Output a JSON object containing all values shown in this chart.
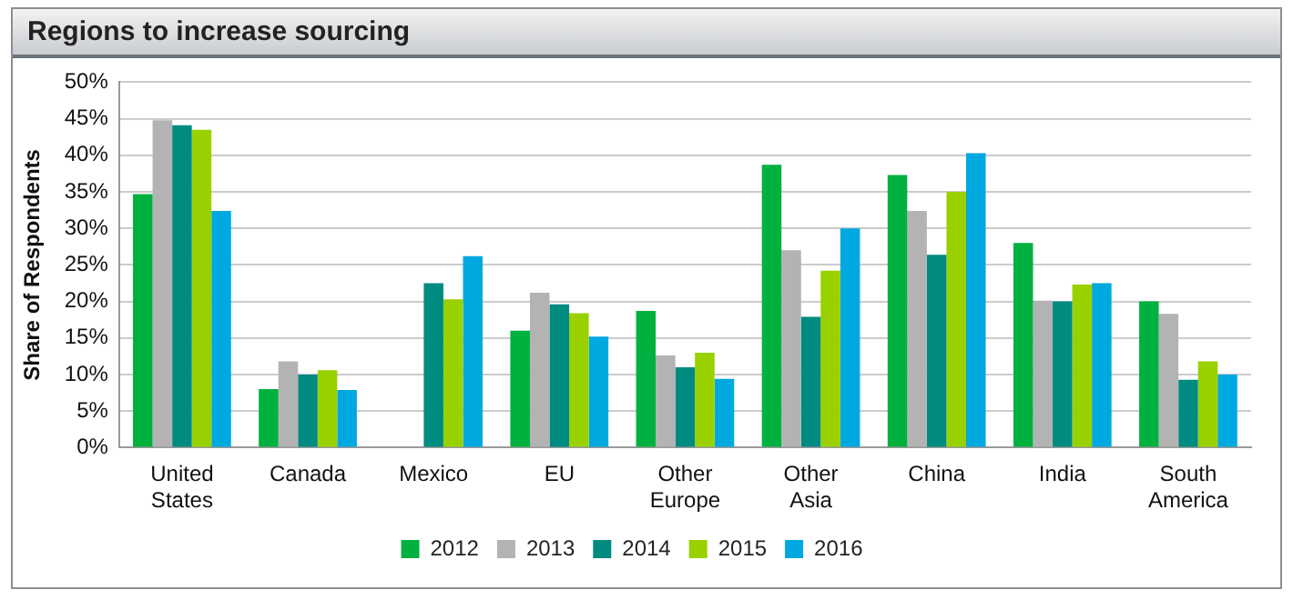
{
  "chart_data": {
    "type": "bar",
    "title": "Regions to increase sourcing",
    "ylabel": "Share of Respondents",
    "categories": [
      "United States",
      "Canada",
      "Mexico",
      "EU",
      "Other Europe",
      "Other Asia",
      "China",
      "India",
      "South America"
    ],
    "series": [
      {
        "name": "2012",
        "color": "#00b140",
        "values": [
          34.7,
          8,
          null,
          16,
          18.7,
          38.7,
          37.3,
          28,
          20
        ]
      },
      {
        "name": "2013",
        "color": "#b3b3b3",
        "values": [
          44.8,
          11.8,
          null,
          21.2,
          12.6,
          27,
          32.4,
          20.1,
          18.3
        ]
      },
      {
        "name": "2014",
        "color": "#008b80",
        "values": [
          44.1,
          10,
          22.5,
          19.6,
          11,
          17.9,
          26.4,
          20,
          9.3
        ]
      },
      {
        "name": "2015",
        "color": "#99d100",
        "values": [
          43.5,
          10.6,
          20.3,
          18.4,
          13,
          24.2,
          35,
          22.3,
          11.8
        ]
      },
      {
        "name": "2016",
        "color": "#00a8e0",
        "values": [
          32.4,
          7.9,
          26.2,
          15.2,
          9.4,
          30,
          40.3,
          22.5,
          10
        ]
      }
    ],
    "ylim": [
      0,
      50
    ],
    "yticks": [
      {
        "value": 0,
        "label": "0%"
      },
      {
        "value": 5,
        "label": "5%"
      },
      {
        "value": 10,
        "label": "10%"
      },
      {
        "value": 15,
        "label": "15%"
      },
      {
        "value": 20,
        "label": "20%"
      },
      {
        "value": 25,
        "label": "25%"
      },
      {
        "value": 30,
        "label": "30%"
      },
      {
        "value": 35,
        "label": "35%"
      },
      {
        "value": 40,
        "label": "40%"
      },
      {
        "value": 45,
        "label": "45%"
      },
      {
        "value": 50,
        "label": "50%"
      }
    ],
    "grid": "y",
    "legend": "bottom"
  }
}
